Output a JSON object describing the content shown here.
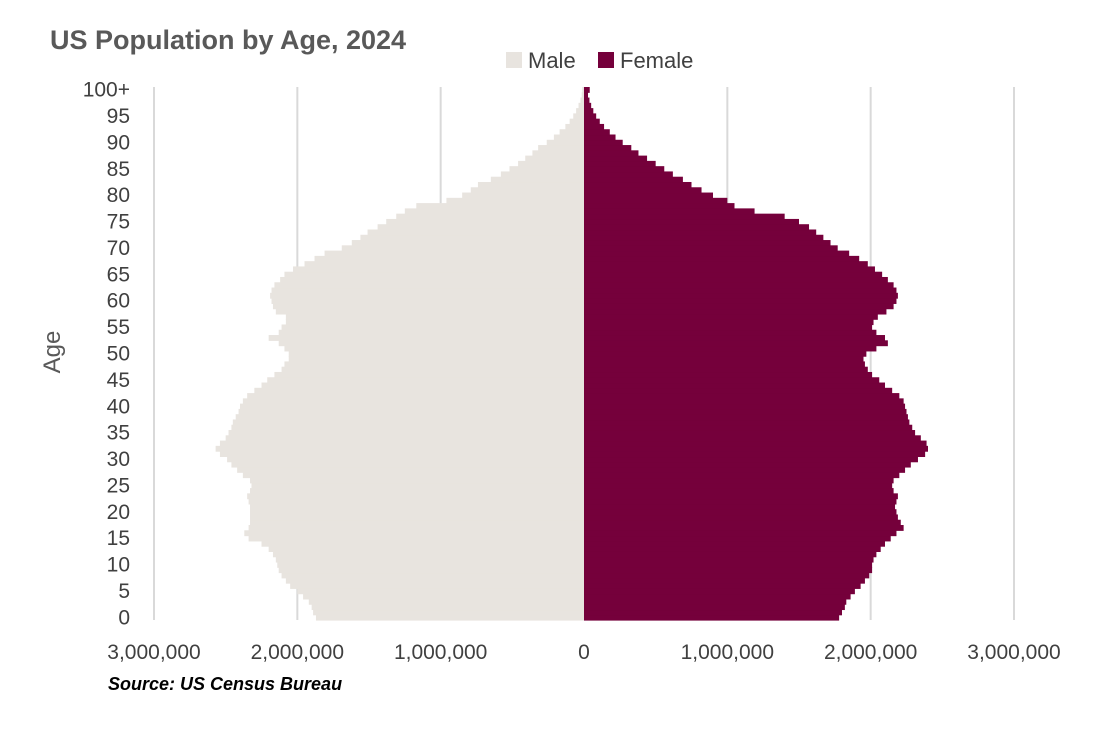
{
  "chart_data": {
    "type": "bar",
    "orientation": "horizontal",
    "layout": "population-pyramid",
    "title": "US Population by Age, 2024",
    "ylabel": "Age",
    "xlabel": "",
    "source": "Source: US Census Bureau",
    "legend": {
      "position": "top",
      "entries": [
        "Male",
        "Female"
      ]
    },
    "grid": "vertical",
    "xlim": [
      -3000000,
      3000000
    ],
    "x_ticks": [
      -3000000,
      -2000000,
      -1000000,
      0,
      1000000,
      2000000,
      3000000
    ],
    "x_tick_labels": [
      "3,000,000",
      "2,000,000",
      "1,000,000",
      "0",
      "1,000,000",
      "2,000,000",
      "3,000,000"
    ],
    "y_ticks": [
      0,
      5,
      10,
      15,
      20,
      25,
      30,
      35,
      40,
      45,
      50,
      55,
      60,
      65,
      70,
      75,
      80,
      85,
      90,
      95,
      100
    ],
    "y_tick_labels": [
      "0",
      "5",
      "10",
      "15",
      "20",
      "25",
      "30",
      "35",
      "40",
      "45",
      "50",
      "55",
      "60",
      "65",
      "70",
      "75",
      "80",
      "85",
      "90",
      "95",
      "100+"
    ],
    "categories": [
      0,
      1,
      2,
      3,
      4,
      5,
      6,
      7,
      8,
      9,
      10,
      11,
      12,
      13,
      14,
      15,
      16,
      17,
      18,
      19,
      20,
      21,
      22,
      23,
      24,
      25,
      26,
      27,
      28,
      29,
      30,
      31,
      32,
      33,
      34,
      35,
      36,
      37,
      38,
      39,
      40,
      41,
      42,
      43,
      44,
      45,
      46,
      47,
      48,
      49,
      50,
      51,
      52,
      53,
      54,
      55,
      56,
      57,
      58,
      59,
      60,
      61,
      62,
      63,
      64,
      65,
      66,
      67,
      68,
      69,
      70,
      71,
      72,
      73,
      74,
      75,
      76,
      77,
      78,
      79,
      80,
      81,
      82,
      83,
      84,
      85,
      86,
      87,
      88,
      89,
      90,
      91,
      92,
      93,
      94,
      95,
      96,
      97,
      98,
      99,
      "100+"
    ],
    "series": [
      {
        "name": "Male",
        "color": "#e8e4df",
        "values": [
          1870000,
          1890000,
          1900000,
          1920000,
          1960000,
          2000000,
          2050000,
          2080000,
          2110000,
          2130000,
          2140000,
          2150000,
          2170000,
          2200000,
          2250000,
          2340000,
          2370000,
          2340000,
          2330000,
          2330000,
          2330000,
          2330000,
          2340000,
          2350000,
          2330000,
          2320000,
          2330000,
          2380000,
          2420000,
          2460000,
          2490000,
          2540000,
          2570000,
          2540000,
          2500000,
          2480000,
          2460000,
          2450000,
          2430000,
          2410000,
          2400000,
          2380000,
          2350000,
          2300000,
          2250000,
          2210000,
          2160000,
          2110000,
          2090000,
          2060000,
          2060000,
          2090000,
          2130000,
          2200000,
          2130000,
          2110000,
          2080000,
          2080000,
          2150000,
          2170000,
          2180000,
          2190000,
          2180000,
          2160000,
          2120000,
          2090000,
          2030000,
          1950000,
          1880000,
          1810000,
          1690000,
          1620000,
          1560000,
          1510000,
          1440000,
          1380000,
          1310000,
          1250000,
          1170000,
          960000,
          850000,
          790000,
          740000,
          650000,
          580000,
          520000,
          460000,
          410000,
          360000,
          320000,
          260000,
          210000,
          170000,
          130000,
          100000,
          75000,
          55000,
          38000,
          25000,
          16000,
          12000
        ]
      },
      {
        "name": "Female",
        "color": "#75003b",
        "values": [
          1780000,
          1800000,
          1820000,
          1830000,
          1860000,
          1890000,
          1930000,
          1960000,
          1990000,
          2010000,
          2010000,
          2020000,
          2040000,
          2070000,
          2100000,
          2140000,
          2180000,
          2230000,
          2210000,
          2190000,
          2180000,
          2170000,
          2180000,
          2190000,
          2160000,
          2150000,
          2160000,
          2200000,
          2240000,
          2280000,
          2330000,
          2380000,
          2400000,
          2390000,
          2350000,
          2310000,
          2290000,
          2270000,
          2260000,
          2250000,
          2240000,
          2230000,
          2200000,
          2150000,
          2100000,
          2060000,
          2010000,
          1980000,
          1960000,
          1950000,
          1970000,
          2040000,
          2120000,
          2100000,
          2040000,
          2010000,
          2020000,
          2050000,
          2110000,
          2160000,
          2180000,
          2190000,
          2180000,
          2160000,
          2120000,
          2080000,
          2030000,
          1980000,
          1920000,
          1850000,
          1770000,
          1720000,
          1670000,
          1620000,
          1570000,
          1500000,
          1400000,
          1190000,
          1050000,
          1000000,
          900000,
          820000,
          750000,
          690000,
          620000,
          560000,
          500000,
          440000,
          380000,
          330000,
          270000,
          220000,
          180000,
          140000,
          110000,
          85000,
          65000,
          50000,
          38000,
          28000,
          40000
        ]
      }
    ]
  }
}
